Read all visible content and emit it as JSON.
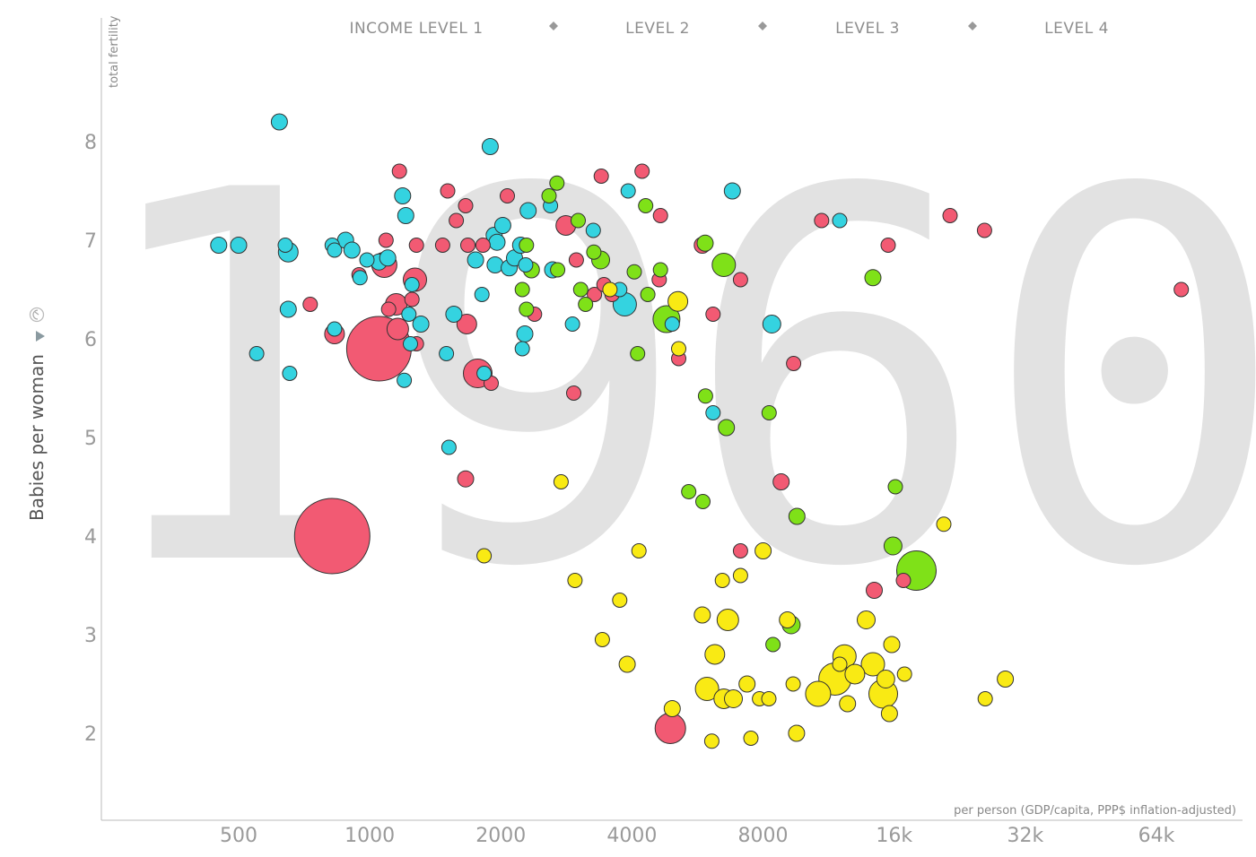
{
  "chart_data": {
    "type": "scatter",
    "year": "1960",
    "ylabel": "Babies per woman",
    "ylabel_axis_note": "total fertility",
    "xlabel": "per person (GDP/capita, PPP$ inflation-adjusted)",
    "x_scale": "log",
    "xlim": [
      300,
      80000
    ],
    "ylim": [
      1.1,
      8.9
    ],
    "x_ticks": [
      {
        "value": 500,
        "label": "500"
      },
      {
        "value": 1000,
        "label": "1000"
      },
      {
        "value": 2000,
        "label": "2000"
      },
      {
        "value": 4000,
        "label": "4000"
      },
      {
        "value": 8000,
        "label": "8000"
      },
      {
        "value": 16000,
        "label": "16k"
      },
      {
        "value": 32000,
        "label": "32k"
      },
      {
        "value": 64000,
        "label": "64k"
      }
    ],
    "y_ticks": [
      {
        "value": 2,
        "label": "2"
      },
      {
        "value": 3,
        "label": "3"
      },
      {
        "value": 4,
        "label": "4"
      },
      {
        "value": 5,
        "label": "5"
      },
      {
        "value": 6,
        "label": "6"
      },
      {
        "value": 7,
        "label": "7"
      },
      {
        "value": 8,
        "label": "8"
      }
    ],
    "legend": {
      "placement": "top",
      "items": [
        "INCOME LEVEL 1",
        "LEVEL 2",
        "LEVEL 3",
        "LEVEL 4"
      ]
    },
    "colors": {
      "red": "#f25a73",
      "cyan": "#34d3e0",
      "green": "#7fe118",
      "yellow": "#f9ea14",
      "axis": "#bbbbbb",
      "year_watermark": "#e2e2e2"
    },
    "series": [
      {
        "color": "red",
        "points": [
          [
            820,
            4.0,
            42
          ],
          [
            1050,
            5.9,
            36
          ],
          [
            1770,
            5.65,
            16
          ],
          [
            4900,
            2.05,
            17
          ],
          [
            1080,
            6.75,
            14
          ],
          [
            1270,
            6.6,
            13
          ],
          [
            1160,
            6.1,
            12
          ],
          [
            1150,
            6.35,
            12
          ],
          [
            830,
            6.05,
            11
          ],
          [
            2820,
            7.15,
            11
          ],
          [
            1670,
            6.15,
            11
          ],
          [
            2070,
            7.45,
            8
          ],
          [
            1170,
            7.7,
            8
          ],
          [
            1510,
            7.5,
            8
          ],
          [
            1580,
            7.2,
            8
          ],
          [
            1660,
            7.35,
            8
          ],
          [
            1280,
            6.95,
            8
          ],
          [
            1090,
            7.0,
            8
          ],
          [
            1250,
            6.4,
            8
          ],
          [
            1470,
            6.95,
            8
          ],
          [
            1680,
            6.95,
            8
          ],
          [
            1820,
            6.95,
            8
          ],
          [
            730,
            6.35,
            8
          ],
          [
            945,
            6.65,
            8
          ],
          [
            1105,
            6.3,
            8
          ],
          [
            1280,
            5.95,
            8
          ],
          [
            1900,
            5.55,
            8
          ],
          [
            1660,
            4.58,
            9
          ],
          [
            2390,
            6.25,
            8
          ],
          [
            2940,
            5.45,
            8
          ],
          [
            2980,
            6.8,
            8
          ],
          [
            3280,
            6.45,
            8
          ],
          [
            3400,
            7.65,
            8
          ],
          [
            3600,
            6.45,
            8
          ],
          [
            3450,
            6.55,
            8
          ],
          [
            4220,
            7.7,
            8
          ],
          [
            4620,
            6.6,
            8
          ],
          [
            4650,
            7.25,
            8
          ],
          [
            5120,
            5.8,
            8
          ],
          [
            5800,
            6.95,
            9
          ],
          [
            6140,
            6.25,
            8
          ],
          [
            7100,
            6.6,
            8
          ],
          [
            7100,
            3.85,
            8
          ],
          [
            8800,
            4.55,
            9
          ],
          [
            9400,
            5.75,
            8
          ],
          [
            10900,
            7.2,
            8
          ],
          [
            14400,
            3.45,
            9
          ],
          [
            15500,
            6.95,
            8
          ],
          [
            16800,
            3.55,
            8
          ],
          [
            21500,
            7.25,
            8
          ],
          [
            25800,
            7.1,
            8
          ],
          [
            73000,
            6.5,
            8
          ]
        ]
      },
      {
        "color": "cyan",
        "points": [
          [
            450,
            6.95,
            9
          ],
          [
            500,
            6.95,
            9
          ],
          [
            550,
            5.85,
            8
          ],
          [
            620,
            8.2,
            9
          ],
          [
            640,
            6.95,
            8
          ],
          [
            650,
            6.88,
            11
          ],
          [
            650,
            6.3,
            9
          ],
          [
            655,
            5.65,
            8
          ],
          [
            820,
            6.95,
            8
          ],
          [
            830,
            6.1,
            8
          ],
          [
            830,
            6.9,
            8
          ],
          [
            880,
            7.0,
            9
          ],
          [
            910,
            6.9,
            9
          ],
          [
            950,
            6.62,
            8
          ],
          [
            985,
            6.8,
            8
          ],
          [
            1050,
            6.78,
            9
          ],
          [
            1100,
            6.82,
            9
          ],
          [
            1190,
            7.45,
            9
          ],
          [
            1210,
            7.25,
            9
          ],
          [
            1230,
            6.25,
            8
          ],
          [
            1240,
            5.95,
            8
          ],
          [
            1250,
            6.55,
            8
          ],
          [
            1310,
            6.15,
            9
          ],
          [
            1200,
            5.58,
            8
          ],
          [
            1500,
            5.85,
            8
          ],
          [
            1520,
            4.9,
            8
          ],
          [
            1560,
            6.25,
            9
          ],
          [
            1750,
            6.8,
            9
          ],
          [
            1810,
            6.45,
            8
          ],
          [
            1890,
            7.95,
            9
          ],
          [
            1930,
            7.05,
            9
          ],
          [
            1940,
            6.75,
            9
          ],
          [
            1960,
            6.98,
            9
          ],
          [
            2020,
            7.15,
            9
          ],
          [
            2090,
            6.72,
            9
          ],
          [
            2150,
            6.82,
            9
          ],
          [
            2220,
            6.95,
            9
          ],
          [
            2280,
            6.75,
            8
          ],
          [
            2310,
            7.3,
            9
          ],
          [
            2240,
            5.9,
            8
          ],
          [
            2270,
            6.05,
            9
          ],
          [
            2600,
            7.35,
            8
          ],
          [
            2630,
            6.7,
            9
          ],
          [
            2920,
            6.15,
            8
          ],
          [
            3260,
            7.1,
            8
          ],
          [
            3750,
            6.5,
            8
          ],
          [
            3850,
            6.35,
            13
          ],
          [
            3920,
            7.5,
            8
          ],
          [
            4950,
            6.15,
            8
          ],
          [
            6140,
            5.25,
            8
          ],
          [
            6800,
            7.5,
            9
          ],
          [
            8380,
            6.15,
            10
          ],
          [
            12000,
            7.2,
            8
          ],
          [
            1830,
            5.65,
            8
          ]
        ]
      },
      {
        "color": "green",
        "points": [
          [
            2240,
            6.5,
            8
          ],
          [
            2290,
            6.95,
            8
          ],
          [
            2290,
            6.3,
            8
          ],
          [
            2350,
            6.7,
            9
          ],
          [
            2580,
            7.45,
            8
          ],
          [
            2690,
            7.58,
            8
          ],
          [
            2700,
            6.7,
            8
          ],
          [
            3010,
            7.2,
            8
          ],
          [
            3050,
            6.5,
            8
          ],
          [
            3130,
            6.35,
            8
          ],
          [
            3270,
            6.88,
            8
          ],
          [
            3390,
            6.8,
            10
          ],
          [
            4050,
            6.68,
            8
          ],
          [
            4120,
            5.85,
            8
          ],
          [
            4300,
            7.35,
            8
          ],
          [
            4350,
            6.45,
            8
          ],
          [
            4650,
            6.7,
            8
          ],
          [
            4800,
            6.2,
            15
          ],
          [
            5400,
            4.45,
            8
          ],
          [
            5820,
            4.35,
            8
          ],
          [
            5890,
            6.97,
            9
          ],
          [
            5900,
            5.42,
            8
          ],
          [
            6500,
            6.75,
            13
          ],
          [
            6590,
            5.1,
            9
          ],
          [
            8260,
            5.25,
            8
          ],
          [
            8430,
            2.9,
            8
          ],
          [
            9280,
            3.1,
            10
          ],
          [
            9570,
            4.2,
            9
          ],
          [
            14300,
            6.62,
            9
          ],
          [
            15900,
            3.9,
            10
          ],
          [
            16100,
            4.5,
            8
          ],
          [
            18000,
            3.65,
            22
          ]
        ]
      },
      {
        "color": "yellow",
        "points": [
          [
            1830,
            3.8,
            8
          ],
          [
            2750,
            4.55,
            8
          ],
          [
            2960,
            3.55,
            8
          ],
          [
            3420,
            2.95,
            8
          ],
          [
            3560,
            6.5,
            8
          ],
          [
            3750,
            3.35,
            8
          ],
          [
            3900,
            2.7,
            9
          ],
          [
            4150,
            3.85,
            8
          ],
          [
            4950,
            2.25,
            9
          ],
          [
            5100,
            6.38,
            11
          ],
          [
            5120,
            5.9,
            8
          ],
          [
            5800,
            3.2,
            9
          ],
          [
            5950,
            2.45,
            13
          ],
          [
            6100,
            1.92,
            8
          ],
          [
            6200,
            2.8,
            11
          ],
          [
            6450,
            3.55,
            8
          ],
          [
            6500,
            2.35,
            11
          ],
          [
            6640,
            3.15,
            12
          ],
          [
            6840,
            2.35,
            10
          ],
          [
            7100,
            3.6,
            8
          ],
          [
            7350,
            2.5,
            9
          ],
          [
            7500,
            1.95,
            8
          ],
          [
            7850,
            2.35,
            8
          ],
          [
            8000,
            3.85,
            9
          ],
          [
            8250,
            2.35,
            8
          ],
          [
            9100,
            3.15,
            9
          ],
          [
            9380,
            2.5,
            8
          ],
          [
            9550,
            2.0,
            9
          ],
          [
            10700,
            2.4,
            14
          ],
          [
            11700,
            2.55,
            18
          ],
          [
            12000,
            2.7,
            8
          ],
          [
            12300,
            2.78,
            13
          ],
          [
            12500,
            2.3,
            9
          ],
          [
            13000,
            2.6,
            11
          ],
          [
            13800,
            3.15,
            10
          ],
          [
            14300,
            2.7,
            13
          ],
          [
            15100,
            2.4,
            16
          ],
          [
            15300,
            2.55,
            10
          ],
          [
            15600,
            2.2,
            9
          ],
          [
            15800,
            2.9,
            9
          ],
          [
            16900,
            2.6,
            8
          ],
          [
            20800,
            4.12,
            8
          ],
          [
            25900,
            2.35,
            8
          ],
          [
            28800,
            2.55,
            9
          ]
        ]
      }
    ]
  }
}
